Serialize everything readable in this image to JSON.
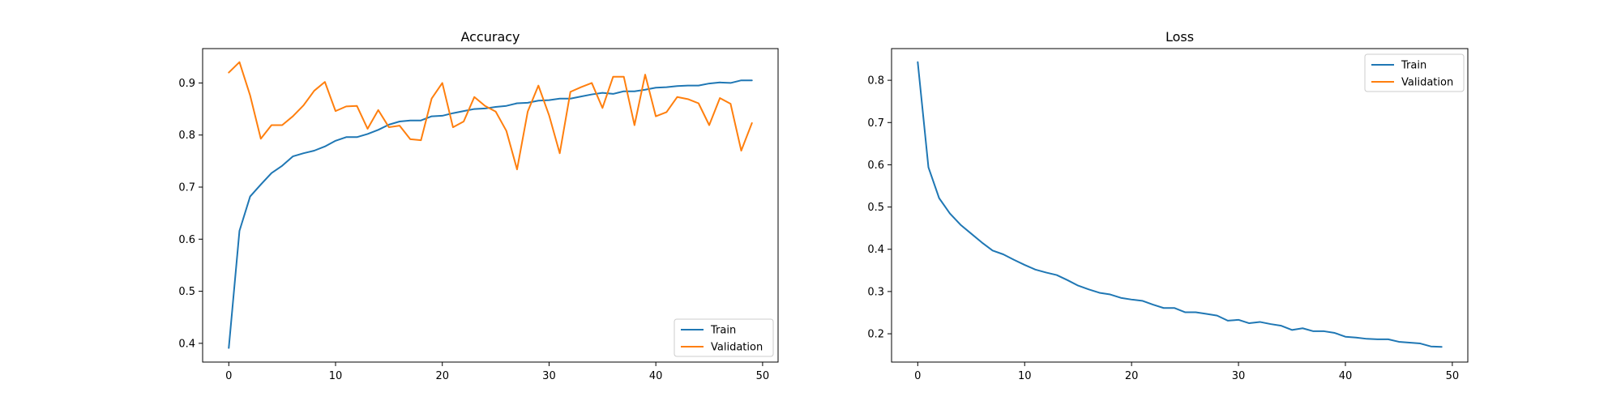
{
  "chart_data": [
    {
      "type": "line",
      "title": "Accuracy",
      "xlabel": "",
      "ylabel": "",
      "xlim": [
        -2.45,
        51.45
      ],
      "ylim": [
        0.364,
        0.966
      ],
      "xticks": [
        0,
        10,
        20,
        30,
        40,
        50
      ],
      "yticks": [
        0.4,
        0.5,
        0.6,
        0.7,
        0.8,
        0.9
      ],
      "grid": false,
      "legend_position": "lower-right",
      "x": [
        0,
        1,
        2,
        3,
        4,
        5,
        6,
        7,
        8,
        9,
        10,
        11,
        12,
        13,
        14,
        15,
        16,
        17,
        18,
        19,
        20,
        21,
        22,
        23,
        24,
        25,
        26,
        27,
        28,
        29,
        30,
        31,
        32,
        33,
        34,
        35,
        36,
        37,
        38,
        39,
        40,
        41,
        42,
        43,
        44,
        45,
        46,
        47,
        48,
        49
      ],
      "series": [
        {
          "name": "Train",
          "color": "#1f77b4",
          "values": [
            0.391,
            0.616,
            0.682,
            0.705,
            0.727,
            0.741,
            0.759,
            0.765,
            0.77,
            0.778,
            0.789,
            0.796,
            0.796,
            0.802,
            0.81,
            0.82,
            0.826,
            0.828,
            0.828,
            0.836,
            0.837,
            0.842,
            0.846,
            0.85,
            0.851,
            0.854,
            0.856,
            0.861,
            0.862,
            0.866,
            0.867,
            0.87,
            0.87,
            0.874,
            0.878,
            0.881,
            0.879,
            0.884,
            0.884,
            0.887,
            0.891,
            0.892,
            0.894,
            0.895,
            0.895,
            0.899,
            0.901,
            0.9,
            0.905,
            0.905
          ]
        },
        {
          "name": "Validation",
          "color": "#ff7f0e",
          "values": [
            0.92,
            0.94,
            0.876,
            0.793,
            0.819,
            0.819,
            0.836,
            0.857,
            0.885,
            0.902,
            0.846,
            0.855,
            0.856,
            0.812,
            0.848,
            0.815,
            0.818,
            0.792,
            0.79,
            0.87,
            0.9,
            0.815,
            0.826,
            0.873,
            0.856,
            0.845,
            0.808,
            0.734,
            0.845,
            0.895,
            0.838,
            0.765,
            0.883,
            0.892,
            0.9,
            0.852,
            0.912,
            0.912,
            0.819,
            0.916,
            0.836,
            0.844,
            0.873,
            0.869,
            0.861,
            0.819,
            0.871,
            0.86,
            0.77,
            0.823
          ]
        }
      ]
    },
    {
      "type": "line",
      "title": "Loss",
      "xlabel": "",
      "ylabel": "",
      "xlim": [
        -2.45,
        51.45
      ],
      "ylim": [
        0.133,
        0.875
      ],
      "xticks": [
        0,
        10,
        20,
        30,
        40,
        50
      ],
      "yticks": [
        0.2,
        0.3,
        0.4,
        0.5,
        0.6,
        0.7,
        0.8
      ],
      "grid": false,
      "legend_position": "upper-right",
      "x": [
        0,
        1,
        2,
        3,
        4,
        5,
        6,
        7,
        8,
        9,
        10,
        11,
        12,
        13,
        14,
        15,
        16,
        17,
        18,
        19,
        20,
        21,
        22,
        23,
        24,
        25,
        26,
        27,
        28,
        29,
        30,
        31,
        32,
        33,
        34,
        35,
        36,
        37,
        38,
        39,
        40,
        41,
        42,
        43,
        44,
        45,
        46,
        47,
        48,
        49
      ],
      "series": [
        {
          "name": "Train",
          "color": "#1f77b4",
          "values": [
            0.843,
            0.594,
            0.521,
            0.485,
            0.458,
            0.437,
            0.416,
            0.397,
            0.388,
            0.375,
            0.363,
            0.352,
            0.345,
            0.339,
            0.327,
            0.314,
            0.305,
            0.297,
            0.293,
            0.285,
            0.281,
            0.278,
            0.269,
            0.261,
            0.261,
            0.251,
            0.251,
            0.247,
            0.243,
            0.231,
            0.233,
            0.225,
            0.228,
            0.223,
            0.219,
            0.209,
            0.213,
            0.206,
            0.206,
            0.202,
            0.193,
            0.191,
            0.188,
            0.187,
            0.187,
            0.181,
            0.179,
            0.177,
            0.17,
            0.169
          ]
        }
      ],
      "legend_entries": [
        {
          "name": "Train",
          "color": "#1f77b4"
        },
        {
          "name": "Validation",
          "color": "#ff7f0e"
        }
      ]
    }
  ]
}
